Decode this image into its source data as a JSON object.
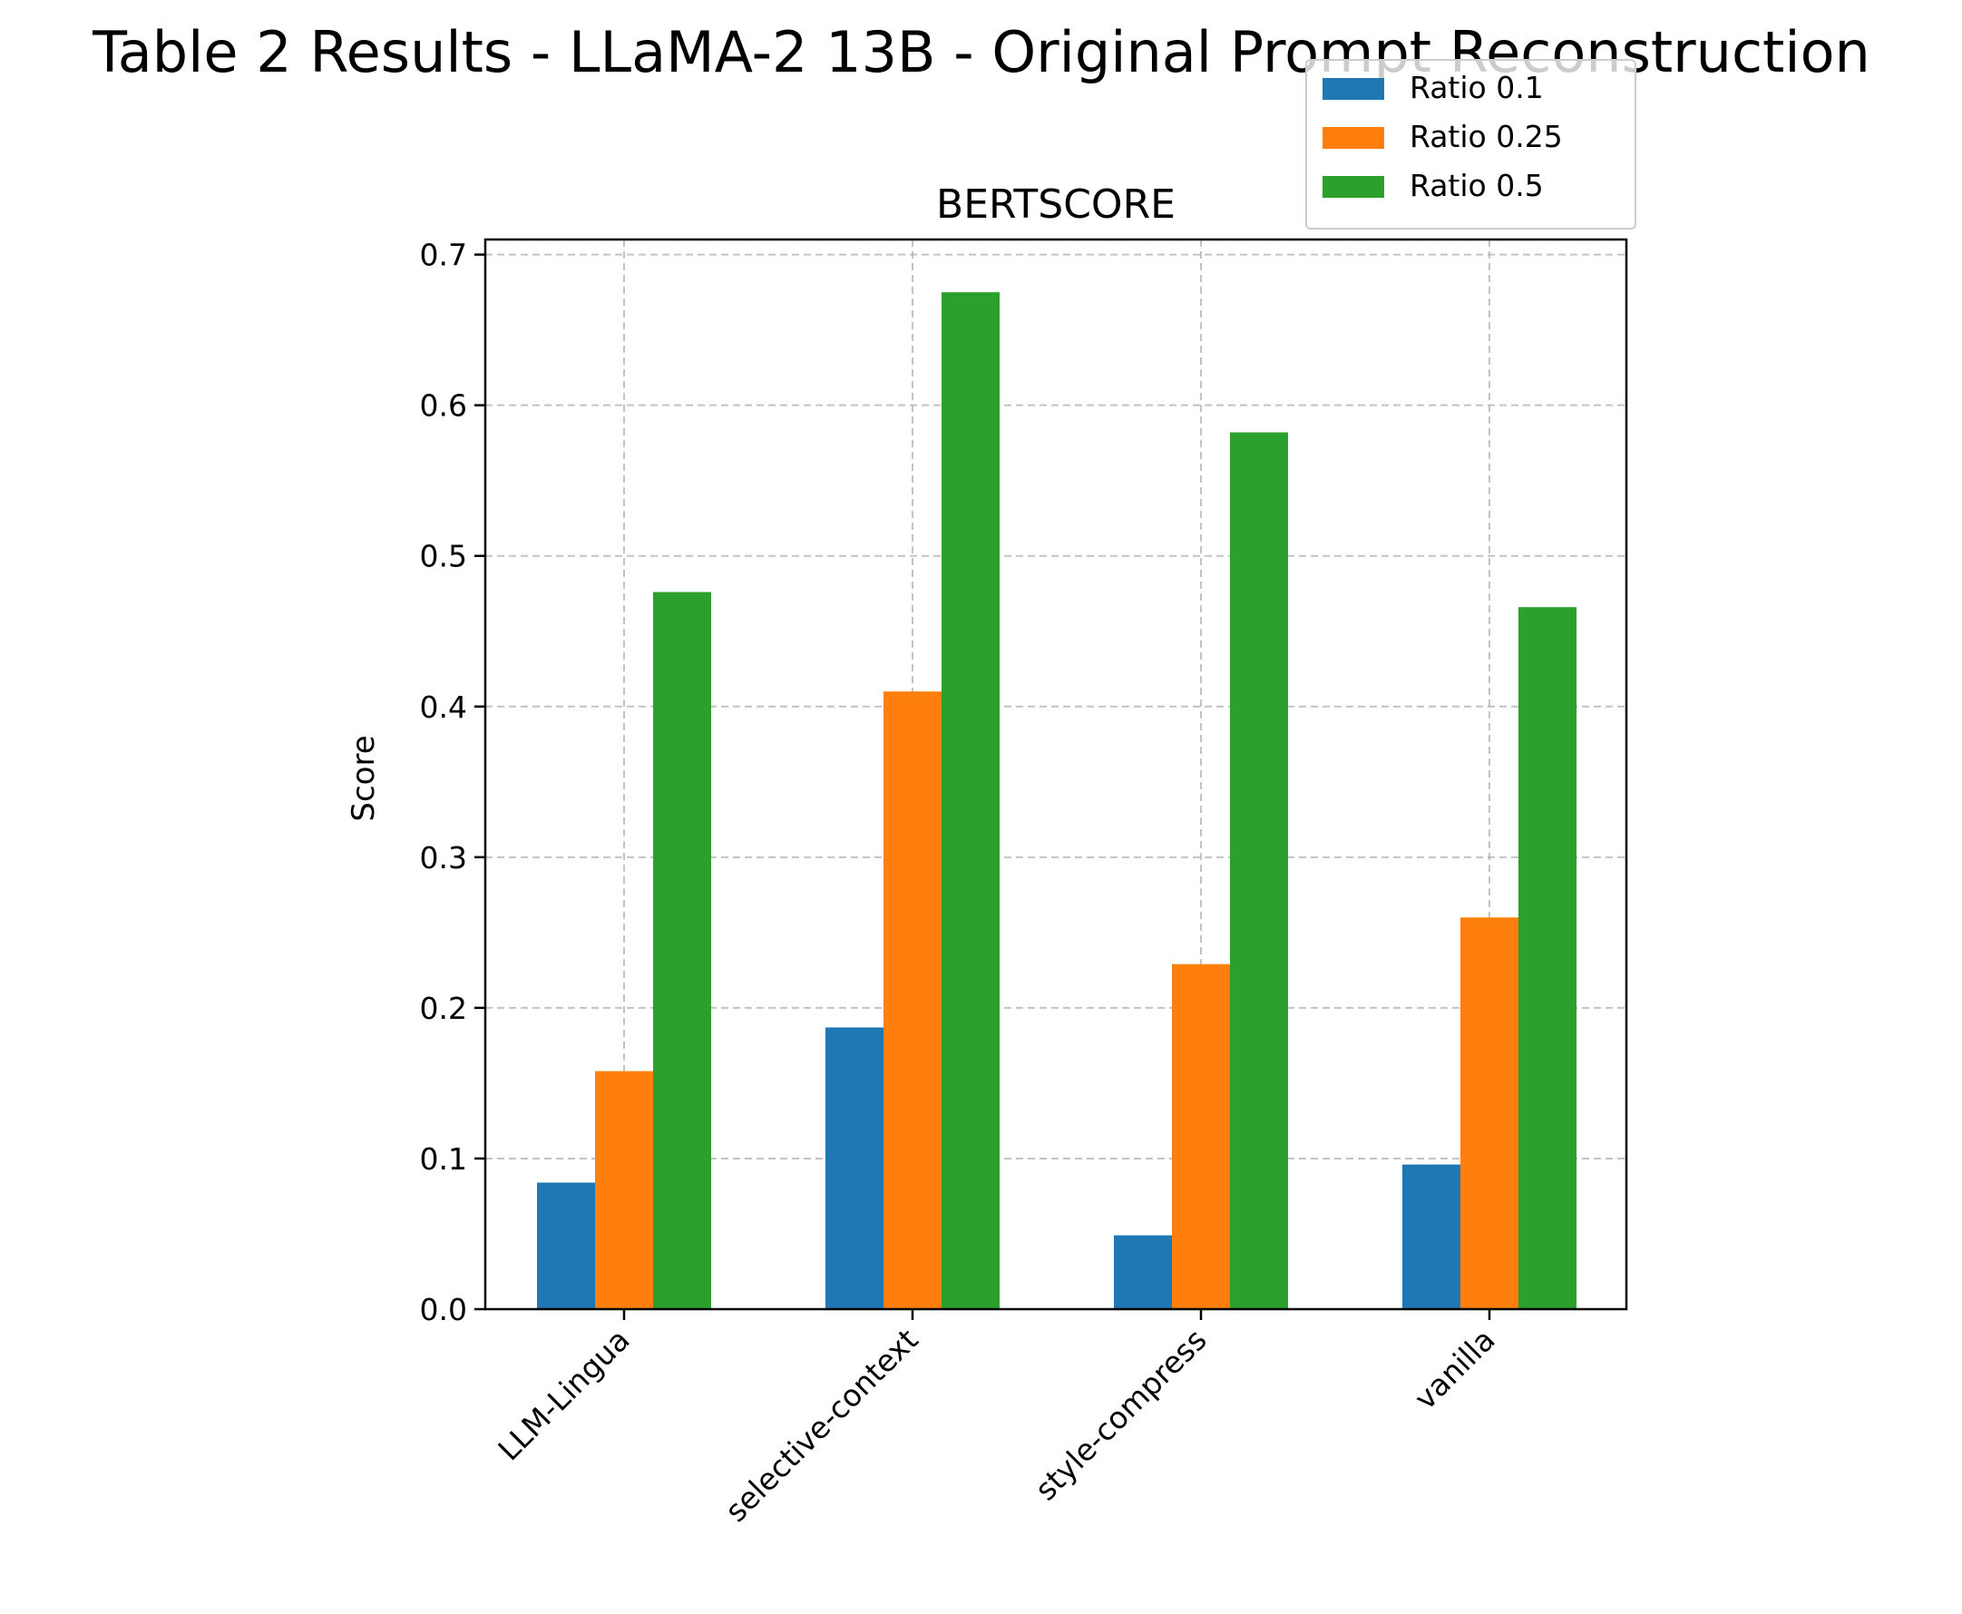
{
  "figure": {
    "suptitle": "Table 2 Results - LLaMA-2 13B - Original Prompt Reconstruction"
  },
  "chart_data": {
    "type": "bar",
    "title": "BERTSCORE",
    "xlabel": "",
    "ylabel": "Score",
    "categories": [
      "LLM-Lingua",
      "selective-context",
      "style-compress",
      "vanilla"
    ],
    "ylim": [
      0,
      0.71
    ],
    "yticks": [
      "0.0",
      "0.1",
      "0.2",
      "0.3",
      "0.4",
      "0.5",
      "0.6",
      "0.7"
    ],
    "grid": true,
    "legend_position": "top-right",
    "series": [
      {
        "name": "Ratio 0.1",
        "color": "#1f77b4",
        "values": [
          0.084,
          0.187,
          0.049,
          0.096
        ]
      },
      {
        "name": "Ratio 0.25",
        "color": "#ff7f0e",
        "values": [
          0.158,
          0.41,
          0.229,
          0.26
        ]
      },
      {
        "name": "Ratio 0.5",
        "color": "#2ca02c",
        "values": [
          0.476,
          0.675,
          0.582,
          0.466
        ]
      }
    ]
  }
}
